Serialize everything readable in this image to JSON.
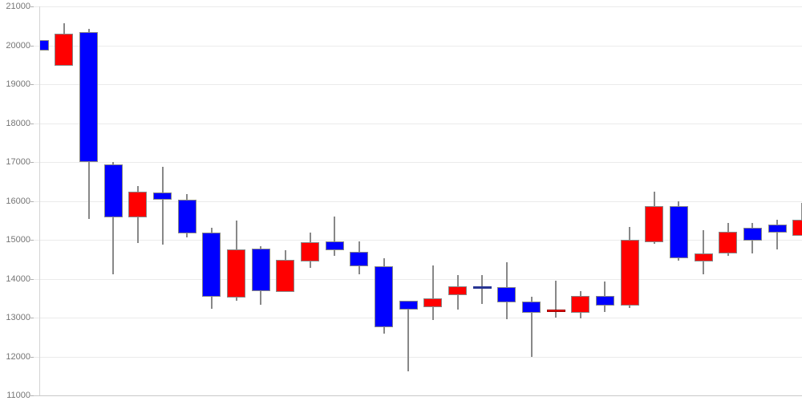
{
  "chart_data": {
    "type": "candlestick",
    "title": "",
    "xlabel": "",
    "ylabel": "",
    "legend": "none",
    "grid": true,
    "background": "#ffffff",
    "y_axis": {
      "min": 11000,
      "max": 21000,
      "tick_step": 1000,
      "ticks": [
        "21000",
        "20000",
        "19000",
        "18000",
        "17000",
        "16000",
        "15000",
        "14000",
        "13000",
        "12000",
        "11000"
      ]
    },
    "x_axis": {
      "labels_visible": false,
      "candle_count": 32
    },
    "colors": {
      "up": "#ff0000",
      "down": "#0000ff",
      "doji": "#283593",
      "thin_up_border": "#9a0000",
      "wick": "#888888",
      "body_border": "#888888",
      "grid": "#ebebeb",
      "axis_line": "#c9c9c9",
      "y_axis_line": "#d4d4d4",
      "tick": "#b0b0b0",
      "label": "#757575"
    },
    "candles": [
      {
        "i": 1,
        "open": 20130,
        "high": 20280,
        "low": 18970,
        "close": 19860,
        "dir": "down",
        "note": "clipped-left"
      },
      {
        "i": 2,
        "open": 19480,
        "high": 20570,
        "low": 19480,
        "close": 20290,
        "dir": "up"
      },
      {
        "i": 3,
        "open": 20330,
        "high": 20420,
        "low": 15530,
        "close": 17000,
        "dir": "down"
      },
      {
        "i": 4,
        "open": 16940,
        "high": 16990,
        "low": 14120,
        "close": 15580,
        "dir": "down"
      },
      {
        "i": 5,
        "open": 15580,
        "high": 16390,
        "low": 14920,
        "close": 16230,
        "dir": "up"
      },
      {
        "i": 6,
        "open": 16210,
        "high": 16870,
        "low": 14870,
        "close": 16030,
        "dir": "down"
      },
      {
        "i": 7,
        "open": 16040,
        "high": 16180,
        "low": 15060,
        "close": 15160,
        "dir": "down"
      },
      {
        "i": 8,
        "open": 15190,
        "high": 15300,
        "low": 13230,
        "close": 13530,
        "dir": "down"
      },
      {
        "i": 9,
        "open": 13510,
        "high": 15490,
        "low": 13440,
        "close": 14760,
        "dir": "up"
      },
      {
        "i": 10,
        "open": 14780,
        "high": 14840,
        "low": 13340,
        "close": 13680,
        "dir": "down"
      },
      {
        "i": 11,
        "open": 13670,
        "high": 14730,
        "low": 13650,
        "close": 14490,
        "dir": "up"
      },
      {
        "i": 12,
        "open": 14440,
        "high": 15190,
        "low": 14280,
        "close": 14930,
        "dir": "up"
      },
      {
        "i": 13,
        "open": 14950,
        "high": 15600,
        "low": 14580,
        "close": 14740,
        "dir": "down"
      },
      {
        "i": 14,
        "open": 14690,
        "high": 14950,
        "low": 14120,
        "close": 14310,
        "dir": "down"
      },
      {
        "i": 15,
        "open": 14310,
        "high": 14530,
        "low": 12590,
        "close": 12760,
        "dir": "down"
      },
      {
        "i": 16,
        "open": 13430,
        "high": 13430,
        "low": 11620,
        "close": 13210,
        "dir": "down"
      },
      {
        "i": 17,
        "open": 13260,
        "high": 14350,
        "low": 12930,
        "close": 13490,
        "dir": "up"
      },
      {
        "i": 18,
        "open": 13570,
        "high": 14090,
        "low": 13200,
        "close": 13810,
        "dir": "up"
      },
      {
        "i": 19,
        "open": 13790,
        "high": 14090,
        "low": 13350,
        "close": 13790,
        "dir": "doji"
      },
      {
        "i": 20,
        "open": 13780,
        "high": 14430,
        "low": 12950,
        "close": 13390,
        "dir": "down"
      },
      {
        "i": 21,
        "open": 13420,
        "high": 13540,
        "low": 11980,
        "close": 13120,
        "dir": "down"
      },
      {
        "i": 22,
        "open": 13140,
        "high": 13950,
        "low": 12990,
        "close": 13210,
        "dir": "up",
        "note": "thin-body"
      },
      {
        "i": 23,
        "open": 13130,
        "high": 13690,
        "low": 12980,
        "close": 13560,
        "dir": "up"
      },
      {
        "i": 24,
        "open": 13560,
        "high": 13920,
        "low": 13140,
        "close": 13300,
        "dir": "down"
      },
      {
        "i": 25,
        "open": 13300,
        "high": 15330,
        "low": 13240,
        "close": 15000,
        "dir": "up"
      },
      {
        "i": 26,
        "open": 14940,
        "high": 16240,
        "low": 14900,
        "close": 15860,
        "dir": "up"
      },
      {
        "i": 27,
        "open": 15860,
        "high": 15990,
        "low": 14460,
        "close": 14530,
        "dir": "down"
      },
      {
        "i": 28,
        "open": 14450,
        "high": 15250,
        "low": 14120,
        "close": 14640,
        "dir": "up"
      },
      {
        "i": 29,
        "open": 14640,
        "high": 15440,
        "low": 14590,
        "close": 15210,
        "dir": "up"
      },
      {
        "i": 30,
        "open": 15310,
        "high": 15430,
        "low": 14650,
        "close": 14980,
        "dir": "down"
      },
      {
        "i": 31,
        "open": 15390,
        "high": 15520,
        "low": 14760,
        "close": 15190,
        "dir": "down"
      },
      {
        "i": 32,
        "open": 15110,
        "high": 15940,
        "low": 15110,
        "close": 15520,
        "dir": "up",
        "note": "clipped-right"
      }
    ]
  }
}
